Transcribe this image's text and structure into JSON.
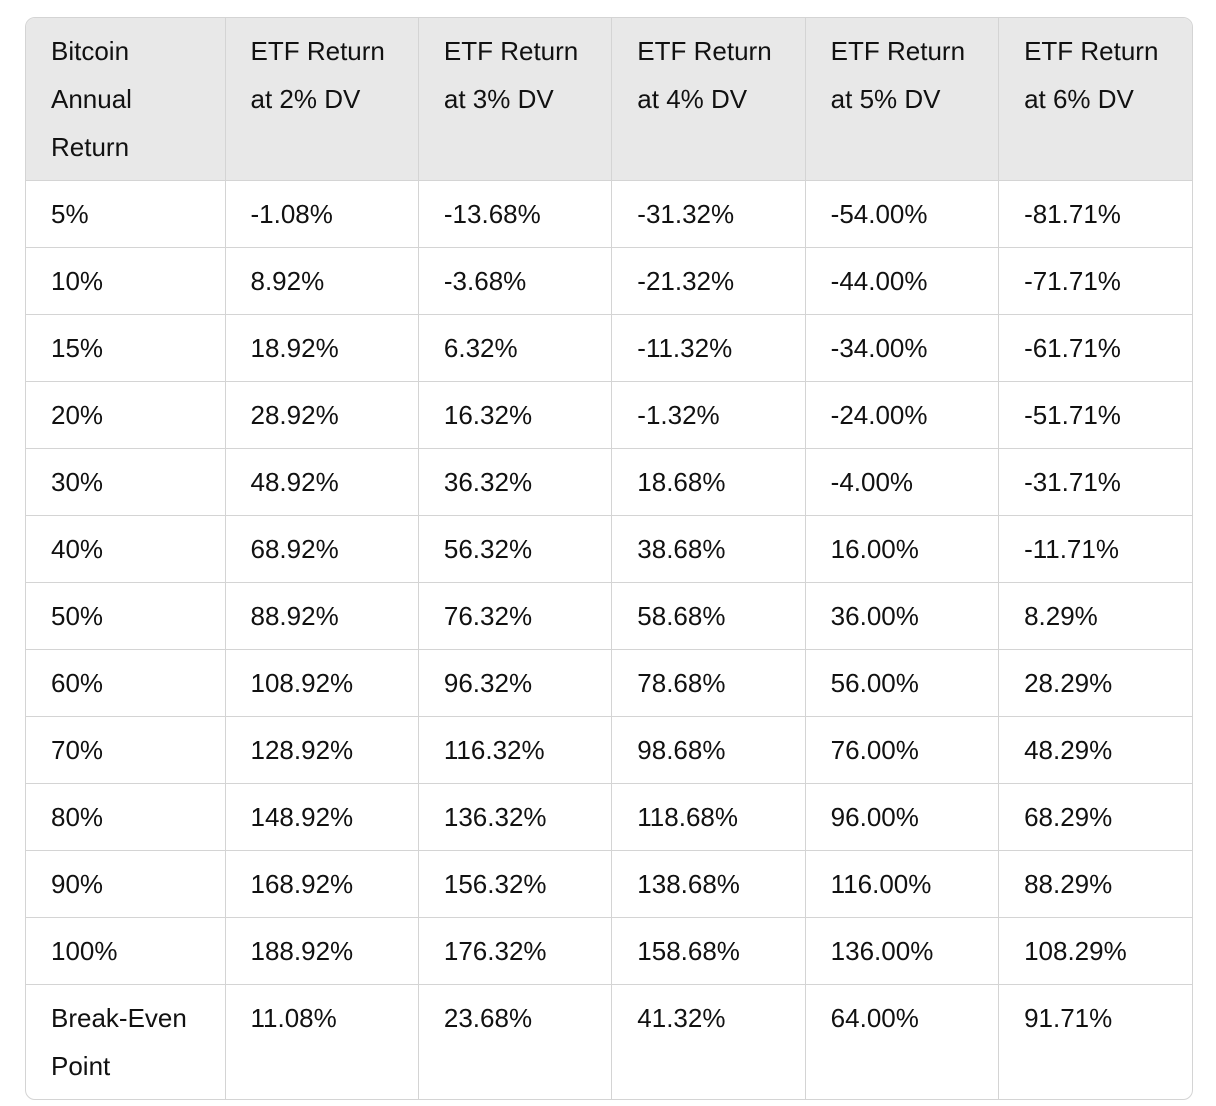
{
  "table": {
    "header": [
      "Bitcoin Annual Return",
      "ETF Return at 2% DV",
      "ETF Return at 3% DV",
      "ETF Return at 4% DV",
      "ETF Return at 5% DV",
      "ETF Return at 6% DV"
    ],
    "rows": [
      [
        "5%",
        "-1.08%",
        "-13.68%",
        "-31.32%",
        "-54.00%",
        "-81.71%"
      ],
      [
        "10%",
        "8.92%",
        "-3.68%",
        "-21.32%",
        "-44.00%",
        "-71.71%"
      ],
      [
        "15%",
        "18.92%",
        "6.32%",
        "-11.32%",
        "-34.00%",
        "-61.71%"
      ],
      [
        "20%",
        "28.92%",
        "16.32%",
        "-1.32%",
        "-24.00%",
        "-51.71%"
      ],
      [
        "30%",
        "48.92%",
        "36.32%",
        "18.68%",
        "-4.00%",
        "-31.71%"
      ],
      [
        "40%",
        "68.92%",
        "56.32%",
        "38.68%",
        "16.00%",
        "-11.71%"
      ],
      [
        "50%",
        "88.92%",
        "76.32%",
        "58.68%",
        "36.00%",
        "8.29%"
      ],
      [
        "60%",
        "108.92%",
        "96.32%",
        "78.68%",
        "56.00%",
        "28.29%"
      ],
      [
        "70%",
        "128.92%",
        "116.32%",
        "98.68%",
        "76.00%",
        "48.29%"
      ],
      [
        "80%",
        "148.92%",
        "136.32%",
        "118.68%",
        "96.00%",
        "68.29%"
      ],
      [
        "90%",
        "168.92%",
        "156.32%",
        "138.68%",
        "116.00%",
        "88.29%"
      ],
      [
        "100%",
        "188.92%",
        "176.32%",
        "158.68%",
        "136.00%",
        "108.29%"
      ],
      [
        "Break-Even Point",
        "11.08%",
        "23.68%",
        "41.32%",
        "64.00%",
        "91.71%"
      ]
    ]
  }
}
